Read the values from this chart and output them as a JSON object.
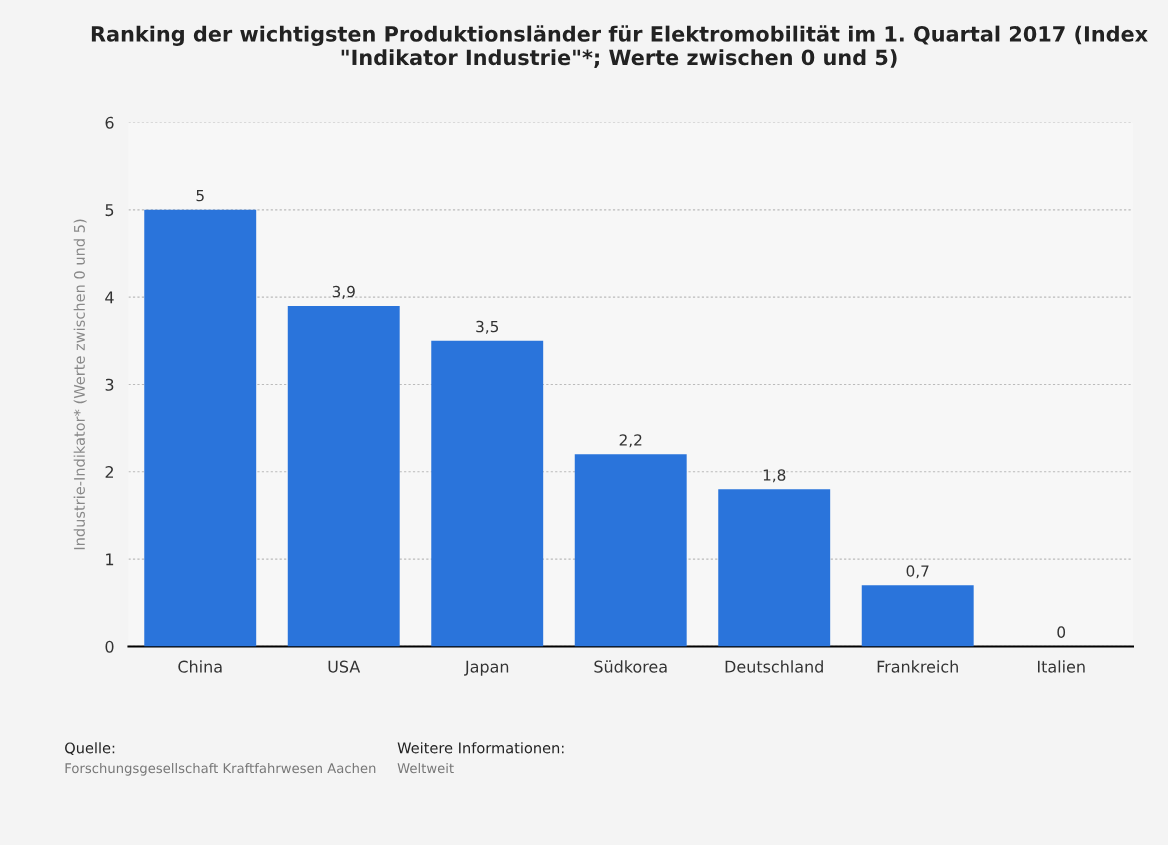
{
  "chart_data": {
    "type": "bar",
    "title": "Ranking der wichtigsten Produktionsländer für Elektromobilität im 1. Quartal 2017 (Index \"Indikator Industrie\"*; Werte zwischen 0 und 5)",
    "ylabel": "Industrie-Indikator* (Werte zwischen 0 und 5)",
    "categories": [
      "China",
      "USA",
      "Japan",
      "Südkorea",
      "Deutschland",
      "Frankreich",
      "Italien"
    ],
    "values": [
      5,
      3.9,
      3.5,
      2.2,
      1.8,
      0.7,
      0
    ],
    "value_labels": [
      "5",
      "3,9",
      "3,5",
      "2,2",
      "1,8",
      "0,7",
      "0"
    ],
    "color": "#2a74db",
    "ylim": [
      0,
      6
    ],
    "yticks": [
      0,
      1,
      2,
      3,
      4,
      5,
      6
    ],
    "grid": "y",
    "annotations": [
      "Quelle:",
      "Forschungsgesellschaft Kraftfahrwesen Aachen",
      "Weitere Informationen:",
      "Weltweit"
    ]
  }
}
